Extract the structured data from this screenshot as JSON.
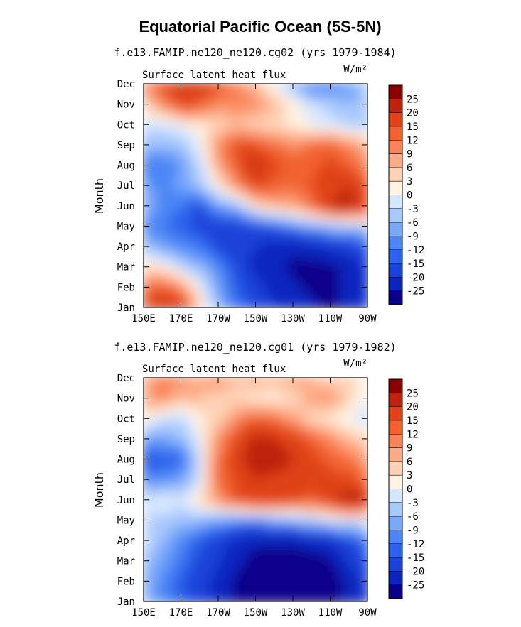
{
  "figure": {
    "title": "Equatorial Pacific Ocean (5S-5N)"
  },
  "colors": {
    "palette": [
      "#08008a",
      "#0c25c0",
      "#1a43d8",
      "#2c62ec",
      "#4b86f6",
      "#7aa8fa",
      "#a9c9fd",
      "#d5e6ff",
      "#fff3e3",
      "#ffd2b6",
      "#fdab86",
      "#f98458",
      "#f2622f",
      "#df4317",
      "#bd240c",
      "#8b0000"
    ]
  },
  "chart_data": [
    {
      "type": "heatmap",
      "title": "f.e13.FAMIP.ne120_ne120.cg02 (yrs 1979-1984)",
      "left_label": "Surface latent heat flux",
      "right_label": "W/m²",
      "ylabel": "Month",
      "x_ticks": [
        "150E",
        "170E",
        "170W",
        "150W",
        "130W",
        "110W",
        "90W"
      ],
      "y_ticks": [
        "Jan",
        "Feb",
        "Mar",
        "Apr",
        "May",
        "Jun",
        "Jul",
        "Aug",
        "Sep",
        "Oct",
        "Nov",
        "Dec"
      ],
      "colorbar_levels": [
        "25",
        "20",
        "15",
        "12",
        "9",
        "6",
        "3",
        "0",
        "-3",
        "-6",
        "-9",
        "-12",
        "-15",
        "-20",
        "-25"
      ],
      "x": [
        150,
        160,
        170,
        180,
        190,
        200,
        210,
        220,
        230,
        240,
        250,
        260,
        270
      ],
      "y": [
        "Jan",
        "Feb",
        "Mar",
        "Apr",
        "May",
        "Jun",
        "Jul",
        "Aug",
        "Sep",
        "Oct",
        "Nov",
        "Dec"
      ],
      "z": [
        [
          15,
          22,
          20,
          4,
          -6,
          -12,
          -16,
          -20,
          -22,
          -24,
          -26,
          -24,
          -20
        ],
        [
          12,
          14,
          10,
          0,
          -8,
          -14,
          -18,
          -22,
          -24,
          -26,
          -26,
          -24,
          -20
        ],
        [
          4,
          2,
          -3,
          -6,
          -10,
          -16,
          -22,
          -24,
          -26,
          -27,
          -26,
          -24,
          -20
        ],
        [
          -5,
          -8,
          -10,
          -12,
          -16,
          -18,
          -20,
          -24,
          -24,
          -22,
          -20,
          -18,
          -15
        ],
        [
          -10,
          -12,
          -14,
          -16,
          -18,
          -18,
          -16,
          -14,
          -10,
          -8,
          -6,
          -5,
          -4
        ],
        [
          -6,
          -10,
          -12,
          -16,
          -8,
          -6,
          4,
          6,
          8,
          12,
          20,
          22,
          18
        ],
        [
          -8,
          -10,
          -8,
          -5,
          2,
          10,
          16,
          14,
          12,
          15,
          18,
          20,
          15
        ],
        [
          -12,
          -12,
          -9,
          -3,
          8,
          14,
          22,
          16,
          14,
          14,
          16,
          14,
          10
        ],
        [
          -6,
          -6,
          -5,
          0,
          10,
          16,
          15,
          12,
          10,
          12,
          14,
          10,
          6
        ],
        [
          -2,
          -2,
          0,
          2,
          4,
          6,
          4,
          4,
          2,
          0,
          -2,
          -3,
          -4
        ],
        [
          4,
          10,
          16,
          14,
          10,
          10,
          10,
          6,
          2,
          -2,
          -4,
          -6,
          -6
        ],
        [
          9,
          16,
          20,
          20,
          16,
          10,
          6,
          0,
          -6,
          -12,
          -12,
          -8,
          -4
        ]
      ]
    },
    {
      "type": "heatmap",
      "title": "f.e13.FAMIP.ne120_ne120.cg01 (yrs 1979-1982)",
      "left_label": "Surface latent heat flux",
      "right_label": "W/m²",
      "ylabel": "Month",
      "x_ticks": [
        "150E",
        "170E",
        "170W",
        "150W",
        "130W",
        "110W",
        "90W"
      ],
      "y_ticks": [
        "Jan",
        "Feb",
        "Mar",
        "Apr",
        "May",
        "Jun",
        "Jul",
        "Aug",
        "Sep",
        "Oct",
        "Nov",
        "Dec"
      ],
      "colorbar_levels": [
        "25",
        "20",
        "15",
        "12",
        "9",
        "6",
        "3",
        "0",
        "-3",
        "-6",
        "-9",
        "-12",
        "-15",
        "-20",
        "-25"
      ],
      "x": [
        150,
        160,
        170,
        180,
        190,
        200,
        210,
        220,
        230,
        240,
        250,
        260,
        270
      ],
      "y": [
        "Jan",
        "Feb",
        "Mar",
        "Apr",
        "May",
        "Jun",
        "Jul",
        "Aug",
        "Sep",
        "Oct",
        "Nov",
        "Dec"
      ],
      "z": [
        [
          -6,
          -10,
          -14,
          -18,
          -22,
          -26,
          -28,
          -28,
          -28,
          -28,
          -28,
          -24,
          -20
        ],
        [
          -6,
          -10,
          -14,
          -18,
          -22,
          -26,
          -28,
          -28,
          -28,
          -28,
          -28,
          -24,
          -18
        ],
        [
          -5,
          -8,
          -12,
          -16,
          -20,
          -24,
          -27,
          -28,
          -28,
          -28,
          -26,
          -20,
          -15
        ],
        [
          -2,
          -6,
          -10,
          -14,
          -18,
          -22,
          -24,
          -24,
          -24,
          -22,
          -20,
          -16,
          -12
        ],
        [
          -3,
          -4,
          -5,
          -6,
          -8,
          -10,
          -10,
          -8,
          -6,
          -4,
          -2,
          -1,
          0
        ],
        [
          -2,
          0,
          -2,
          4,
          10,
          15,
          18,
          18,
          16,
          14,
          18,
          24,
          22
        ],
        [
          -10,
          -10,
          -8,
          -2,
          12,
          16,
          20,
          18,
          18,
          16,
          16,
          16,
          12
        ],
        [
          -16,
          -14,
          -14,
          -2,
          12,
          18,
          24,
          24,
          20,
          16,
          14,
          12,
          8
        ],
        [
          -8,
          -8,
          -6,
          0,
          10,
          16,
          22,
          20,
          18,
          14,
          10,
          6,
          4
        ],
        [
          2,
          -2,
          -3,
          2,
          4,
          10,
          14,
          12,
          8,
          4,
          2,
          0,
          -2
        ],
        [
          8,
          10,
          6,
          6,
          4,
          4,
          2,
          2,
          4,
          8,
          10,
          4,
          0
        ],
        [
          6,
          12,
          10,
          8,
          10,
          6,
          8,
          6,
          8,
          6,
          4,
          4,
          2
        ]
      ]
    }
  ]
}
